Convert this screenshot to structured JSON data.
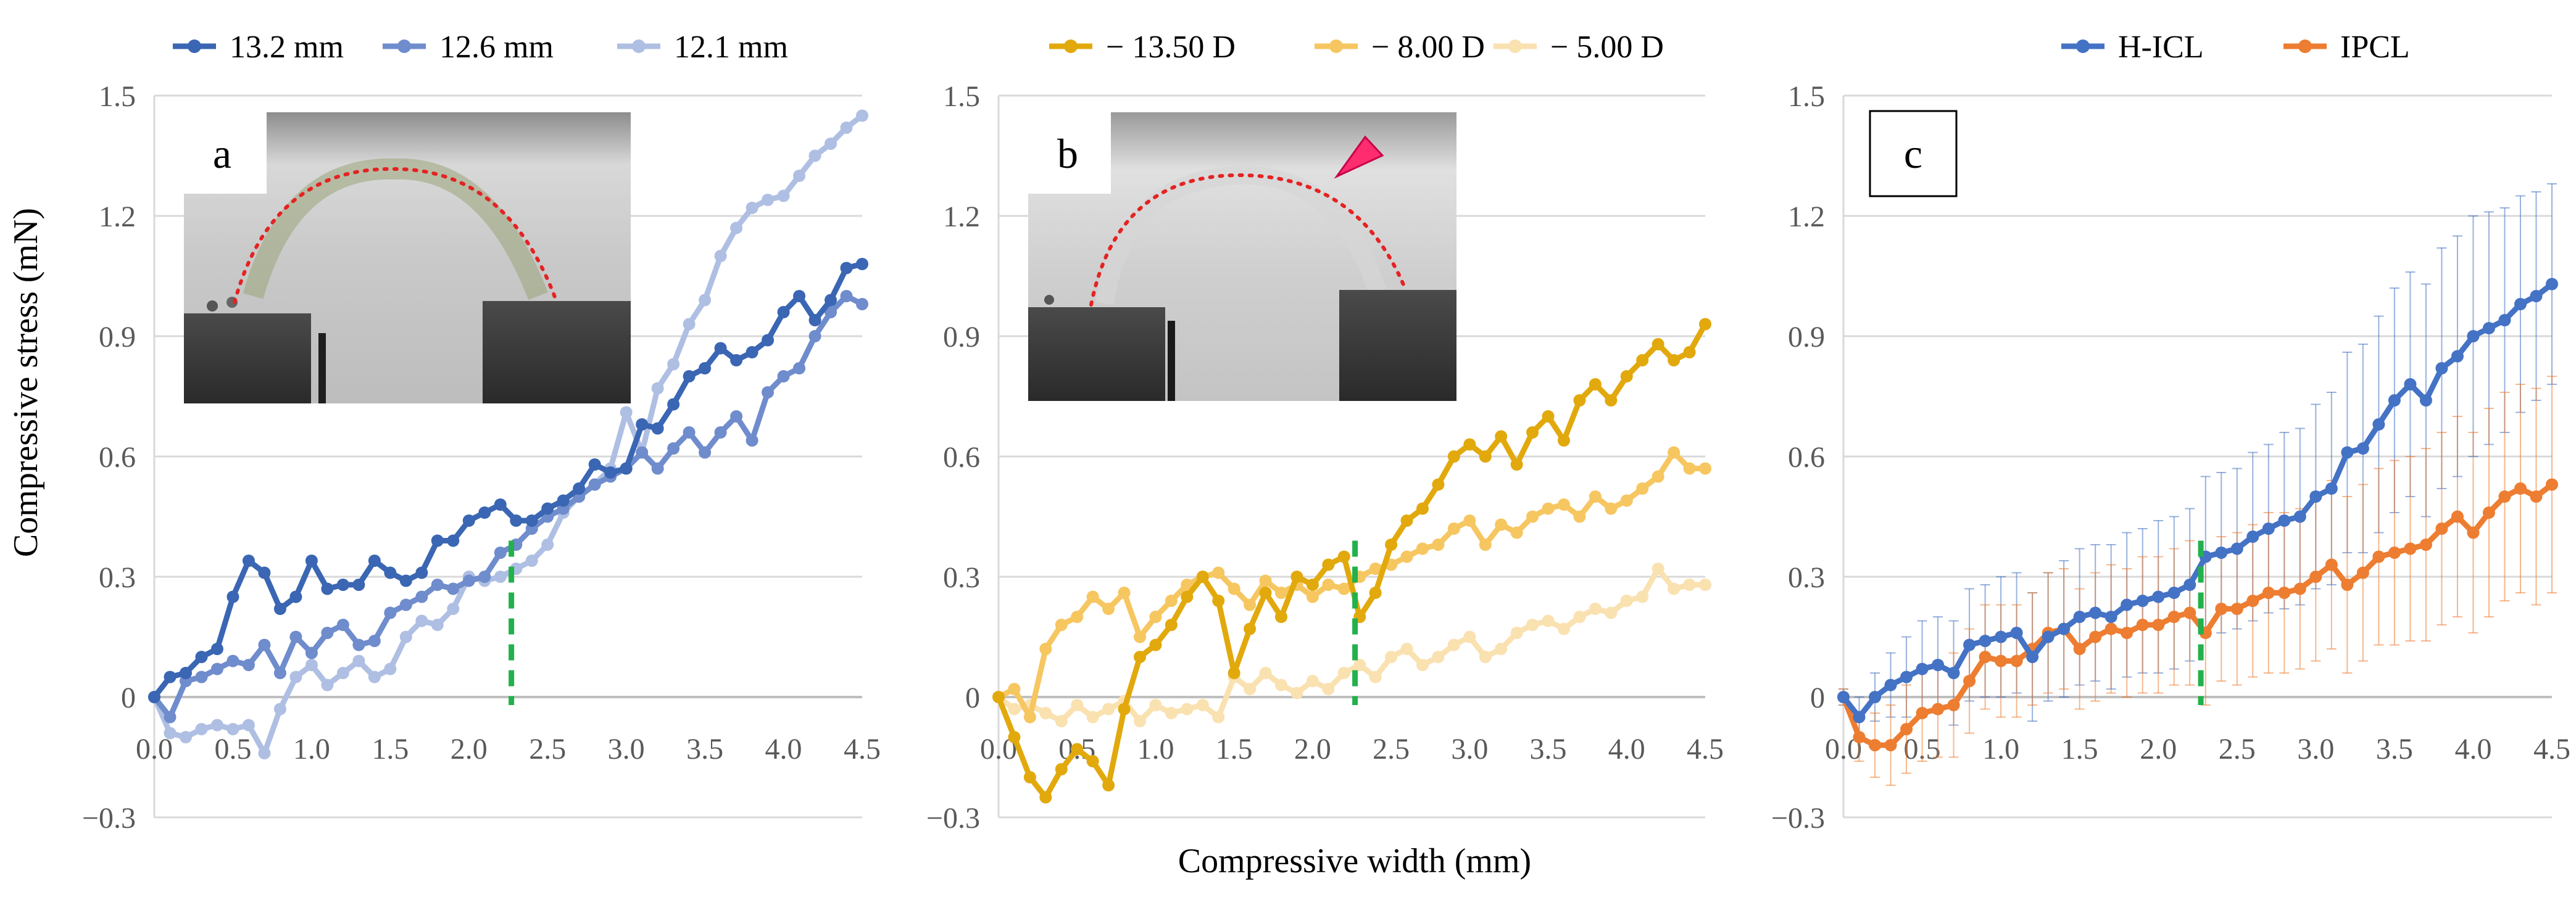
{
  "figure": {
    "shared_xlabel": "Compressive width (mm)",
    "shared_ylabel": "Compressive stress (mN)"
  },
  "chart_data": [
    {
      "type": "line",
      "panel_label": "a",
      "xlim": [
        0,
        4.5
      ],
      "ylim": [
        -0.3,
        1.5
      ],
      "x_ticks": [
        "0.0",
        "0.5",
        "1.0",
        "1.5",
        "2.0",
        "2.5",
        "3.0",
        "3.5",
        "4.0",
        "4.5"
      ],
      "y_ticks": [
        "−0.3",
        "0",
        "0.3",
        "0.6",
        "0.9",
        "1.2",
        "1.5"
      ],
      "grid": true,
      "legend_position": "top",
      "reference_line_x": 2.27,
      "reference_line_color": "#22b14c",
      "inset_photo": true,
      "series": [
        {
          "name": "13.2 mm",
          "color": "#3a66b3",
          "x": [
            0.0,
            0.1,
            0.2,
            0.3,
            0.4,
            0.5,
            0.6,
            0.7,
            0.8,
            0.9,
            1.0,
            1.1,
            1.2,
            1.3,
            1.4,
            1.5,
            1.6,
            1.7,
            1.8,
            1.9,
            2.0,
            2.1,
            2.2,
            2.3,
            2.4,
            2.5,
            2.6,
            2.7,
            2.8,
            2.9,
            3.0,
            3.1,
            3.2,
            3.3,
            3.4,
            3.5,
            3.6,
            3.7,
            3.8,
            3.9,
            4.0,
            4.1,
            4.2,
            4.3,
            4.4,
            4.5
          ],
          "y": [
            0.0,
            0.05,
            0.06,
            0.1,
            0.12,
            0.25,
            0.34,
            0.31,
            0.22,
            0.25,
            0.34,
            0.27,
            0.28,
            0.28,
            0.34,
            0.31,
            0.29,
            0.31,
            0.39,
            0.39,
            0.44,
            0.46,
            0.48,
            0.44,
            0.44,
            0.47,
            0.49,
            0.52,
            0.58,
            0.56,
            0.57,
            0.68,
            0.67,
            0.73,
            0.8,
            0.82,
            0.87,
            0.84,
            0.86,
            0.89,
            0.96,
            1.0,
            0.94,
            0.99,
            1.07,
            1.08
          ]
        },
        {
          "name": "12.6 mm",
          "color": "#6f8ccc",
          "x": [
            0.0,
            0.1,
            0.2,
            0.3,
            0.4,
            0.5,
            0.6,
            0.7,
            0.8,
            0.9,
            1.0,
            1.1,
            1.2,
            1.3,
            1.4,
            1.5,
            1.6,
            1.7,
            1.8,
            1.9,
            2.0,
            2.1,
            2.2,
            2.3,
            2.4,
            2.5,
            2.6,
            2.7,
            2.8,
            2.9,
            3.0,
            3.1,
            3.2,
            3.3,
            3.4,
            3.5,
            3.6,
            3.7,
            3.8,
            3.9,
            4.0,
            4.1,
            4.2,
            4.3,
            4.4,
            4.5
          ],
          "y": [
            0.0,
            -0.05,
            0.04,
            0.05,
            0.07,
            0.09,
            0.08,
            0.13,
            0.06,
            0.15,
            0.11,
            0.16,
            0.18,
            0.13,
            0.14,
            0.21,
            0.23,
            0.25,
            0.28,
            0.27,
            0.29,
            0.3,
            0.36,
            0.38,
            0.42,
            0.45,
            0.47,
            0.5,
            0.53,
            0.55,
            0.57,
            0.61,
            0.57,
            0.62,
            0.66,
            0.61,
            0.66,
            0.7,
            0.64,
            0.76,
            0.8,
            0.82,
            0.9,
            0.96,
            1.0,
            0.98
          ]
        },
        {
          "name": "12.1 mm",
          "color": "#afbfe3",
          "x": [
            0.0,
            0.1,
            0.2,
            0.3,
            0.4,
            0.5,
            0.6,
            0.7,
            0.8,
            0.9,
            1.0,
            1.1,
            1.2,
            1.3,
            1.4,
            1.5,
            1.6,
            1.7,
            1.8,
            1.9,
            2.0,
            2.1,
            2.2,
            2.3,
            2.4,
            2.5,
            2.6,
            2.7,
            2.8,
            2.9,
            3.0,
            3.1,
            3.2,
            3.3,
            3.4,
            3.5,
            3.6,
            3.7,
            3.8,
            3.9,
            4.0,
            4.1,
            4.2,
            4.3,
            4.4,
            4.5
          ],
          "y": [
            0.0,
            -0.09,
            -0.1,
            -0.08,
            -0.07,
            -0.08,
            -0.07,
            -0.14,
            -0.03,
            0.05,
            0.08,
            0.03,
            0.06,
            0.09,
            0.05,
            0.07,
            0.15,
            0.19,
            0.18,
            0.22,
            0.3,
            0.29,
            0.3,
            0.32,
            0.34,
            0.38,
            0.46,
            0.5,
            0.53,
            0.57,
            0.71,
            0.61,
            0.77,
            0.83,
            0.93,
            0.99,
            1.1,
            1.17,
            1.22,
            1.24,
            1.25,
            1.3,
            1.35,
            1.38,
            1.42,
            1.45
          ]
        }
      ]
    },
    {
      "type": "line",
      "panel_label": "b",
      "xlim": [
        0,
        4.5
      ],
      "ylim": [
        -0.3,
        1.5
      ],
      "x_ticks": [
        "0.0",
        "0.5",
        "1.0",
        "1.5",
        "2.0",
        "2.5",
        "3.0",
        "3.5",
        "4.0",
        "4.5"
      ],
      "y_ticks": [
        "−0.3",
        "0",
        "0.3",
        "0.6",
        "0.9",
        "1.2",
        "1.5"
      ],
      "grid": true,
      "legend_position": "top",
      "reference_line_x": 2.27,
      "reference_line_color": "#22b14c",
      "inset_photo": true,
      "series": [
        {
          "name": "− 13.50 D",
          "color": "#e2a90d",
          "x": [
            0.0,
            0.1,
            0.2,
            0.3,
            0.4,
            0.5,
            0.6,
            0.7,
            0.8,
            0.9,
            1.0,
            1.1,
            1.2,
            1.3,
            1.4,
            1.5,
            1.6,
            1.7,
            1.8,
            1.9,
            2.0,
            2.1,
            2.2,
            2.3,
            2.4,
            2.5,
            2.6,
            2.7,
            2.8,
            2.9,
            3.0,
            3.1,
            3.2,
            3.3,
            3.4,
            3.5,
            3.6,
            3.7,
            3.8,
            3.9,
            4.0,
            4.1,
            4.2,
            4.3,
            4.4,
            4.5
          ],
          "y": [
            0.0,
            -0.1,
            -0.2,
            -0.25,
            -0.18,
            -0.13,
            -0.16,
            -0.22,
            -0.03,
            0.1,
            0.13,
            0.18,
            0.25,
            0.3,
            0.24,
            0.06,
            0.17,
            0.26,
            0.2,
            0.3,
            0.28,
            0.33,
            0.35,
            0.2,
            0.26,
            0.38,
            0.44,
            0.47,
            0.53,
            0.6,
            0.63,
            0.6,
            0.65,
            0.58,
            0.66,
            0.7,
            0.64,
            0.74,
            0.78,
            0.74,
            0.8,
            0.84,
            0.88,
            0.84,
            0.86,
            0.93
          ]
        },
        {
          "name": "− 8.00 D",
          "color": "#f6c660",
          "x": [
            0.0,
            0.1,
            0.2,
            0.3,
            0.4,
            0.5,
            0.6,
            0.7,
            0.8,
            0.9,
            1.0,
            1.1,
            1.2,
            1.3,
            1.4,
            1.5,
            1.6,
            1.7,
            1.8,
            1.9,
            2.0,
            2.1,
            2.2,
            2.3,
            2.4,
            2.5,
            2.6,
            2.7,
            2.8,
            2.9,
            3.0,
            3.1,
            3.2,
            3.3,
            3.4,
            3.5,
            3.6,
            3.7,
            3.8,
            3.9,
            4.0,
            4.1,
            4.2,
            4.3,
            4.4,
            4.5
          ],
          "y": [
            0.0,
            0.02,
            -0.05,
            0.12,
            0.18,
            0.2,
            0.25,
            0.22,
            0.26,
            0.15,
            0.2,
            0.24,
            0.28,
            0.3,
            0.31,
            0.27,
            0.23,
            0.29,
            0.26,
            0.28,
            0.25,
            0.28,
            0.27,
            0.3,
            0.32,
            0.33,
            0.35,
            0.37,
            0.38,
            0.42,
            0.44,
            0.38,
            0.43,
            0.41,
            0.45,
            0.47,
            0.48,
            0.45,
            0.5,
            0.47,
            0.49,
            0.52,
            0.55,
            0.61,
            0.57,
            0.57
          ]
        },
        {
          "name": "− 5.00 D",
          "color": "#fae1b0",
          "x": [
            0.0,
            0.1,
            0.2,
            0.3,
            0.4,
            0.5,
            0.6,
            0.7,
            0.8,
            0.9,
            1.0,
            1.1,
            1.2,
            1.3,
            1.4,
            1.5,
            1.6,
            1.7,
            1.8,
            1.9,
            2.0,
            2.1,
            2.2,
            2.3,
            2.4,
            2.5,
            2.6,
            2.7,
            2.8,
            2.9,
            3.0,
            3.1,
            3.2,
            3.3,
            3.4,
            3.5,
            3.6,
            3.7,
            3.8,
            3.9,
            4.0,
            4.1,
            4.2,
            4.3,
            4.4,
            4.5
          ],
          "y": [
            0.0,
            -0.03,
            -0.02,
            -0.04,
            -0.06,
            -0.02,
            -0.05,
            -0.03,
            -0.01,
            -0.06,
            -0.02,
            -0.04,
            -0.03,
            -0.02,
            -0.05,
            0.05,
            0.02,
            0.06,
            0.03,
            0.01,
            0.04,
            0.02,
            0.06,
            0.08,
            0.05,
            0.1,
            0.12,
            0.08,
            0.1,
            0.13,
            0.15,
            0.1,
            0.12,
            0.16,
            0.18,
            0.19,
            0.17,
            0.2,
            0.22,
            0.21,
            0.24,
            0.25,
            0.32,
            0.27,
            0.28,
            0.28
          ]
        }
      ]
    },
    {
      "type": "line",
      "panel_label": "c",
      "xlim": [
        0,
        4.5
      ],
      "ylim": [
        -0.3,
        1.5
      ],
      "x_ticks": [
        "0.0",
        "0.5",
        "1.0",
        "1.5",
        "2.0",
        "2.5",
        "3.0",
        "3.5",
        "4.0",
        "4.5"
      ],
      "y_ticks": [
        "−0.3",
        "0",
        "0.3",
        "0.6",
        "0.9",
        "1.2",
        "1.5"
      ],
      "grid": true,
      "legend_position": "top",
      "reference_line_x": 2.27,
      "reference_line_color": "#22b14c",
      "error_bars": "upper and lower",
      "series": [
        {
          "name": "H-ICL",
          "color": "#4472c4",
          "x": [
            0.0,
            0.1,
            0.2,
            0.3,
            0.4,
            0.5,
            0.6,
            0.7,
            0.8,
            0.9,
            1.0,
            1.1,
            1.2,
            1.3,
            1.4,
            1.5,
            1.6,
            1.7,
            1.8,
            1.9,
            2.0,
            2.1,
            2.2,
            2.3,
            2.4,
            2.5,
            2.6,
            2.7,
            2.8,
            2.9,
            3.0,
            3.1,
            3.2,
            3.3,
            3.4,
            3.5,
            3.6,
            3.7,
            3.8,
            3.9,
            4.0,
            4.1,
            4.2,
            4.3,
            4.4,
            4.5
          ],
          "y": [
            0.0,
            -0.05,
            0.0,
            0.03,
            0.05,
            0.07,
            0.08,
            0.06,
            0.13,
            0.14,
            0.15,
            0.16,
            0.1,
            0.15,
            0.17,
            0.2,
            0.21,
            0.2,
            0.23,
            0.24,
            0.25,
            0.26,
            0.28,
            0.35,
            0.36,
            0.37,
            0.4,
            0.42,
            0.44,
            0.45,
            0.5,
            0.52,
            0.61,
            0.62,
            0.68,
            0.74,
            0.78,
            0.74,
            0.82,
            0.85,
            0.9,
            0.92,
            0.94,
            0.98,
            1.0,
            1.03
          ],
          "error": [
            0.02,
            0.05,
            0.06,
            0.08,
            0.1,
            0.12,
            0.12,
            0.13,
            0.14,
            0.14,
            0.15,
            0.15,
            0.16,
            0.16,
            0.17,
            0.17,
            0.17,
            0.18,
            0.18,
            0.18,
            0.19,
            0.19,
            0.19,
            0.2,
            0.2,
            0.2,
            0.21,
            0.21,
            0.22,
            0.22,
            0.23,
            0.24,
            0.25,
            0.26,
            0.27,
            0.28,
            0.28,
            0.29,
            0.3,
            0.3,
            0.3,
            0.29,
            0.28,
            0.27,
            0.26,
            0.25
          ]
        },
        {
          "name": "IPCL",
          "color": "#ed7d31",
          "x": [
            0.0,
            0.1,
            0.2,
            0.3,
            0.4,
            0.5,
            0.6,
            0.7,
            0.8,
            0.9,
            1.0,
            1.1,
            1.2,
            1.3,
            1.4,
            1.5,
            1.6,
            1.7,
            1.8,
            1.9,
            2.0,
            2.1,
            2.2,
            2.3,
            2.4,
            2.5,
            2.6,
            2.7,
            2.8,
            2.9,
            3.0,
            3.1,
            3.2,
            3.3,
            3.4,
            3.5,
            3.6,
            3.7,
            3.8,
            3.9,
            4.0,
            4.1,
            4.2,
            4.3,
            4.4,
            4.5
          ],
          "y": [
            0.0,
            -0.1,
            -0.12,
            -0.12,
            -0.08,
            -0.04,
            -0.03,
            -0.02,
            0.04,
            0.1,
            0.09,
            0.09,
            0.12,
            0.16,
            0.17,
            0.12,
            0.15,
            0.17,
            0.16,
            0.18,
            0.18,
            0.2,
            0.21,
            0.16,
            0.22,
            0.22,
            0.24,
            0.26,
            0.26,
            0.27,
            0.3,
            0.33,
            0.28,
            0.31,
            0.35,
            0.36,
            0.37,
            0.38,
            0.42,
            0.45,
            0.41,
            0.46,
            0.5,
            0.52,
            0.5,
            0.53
          ],
          "error": [
            0.02,
            0.06,
            0.08,
            0.1,
            0.11,
            0.12,
            0.12,
            0.13,
            0.13,
            0.13,
            0.14,
            0.14,
            0.14,
            0.15,
            0.15,
            0.15,
            0.16,
            0.16,
            0.16,
            0.17,
            0.17,
            0.17,
            0.18,
            0.18,
            0.18,
            0.19,
            0.19,
            0.2,
            0.2,
            0.2,
            0.21,
            0.21,
            0.22,
            0.22,
            0.22,
            0.23,
            0.23,
            0.24,
            0.24,
            0.25,
            0.25,
            0.26,
            0.26,
            0.26,
            0.27,
            0.27
          ]
        }
      ]
    }
  ]
}
